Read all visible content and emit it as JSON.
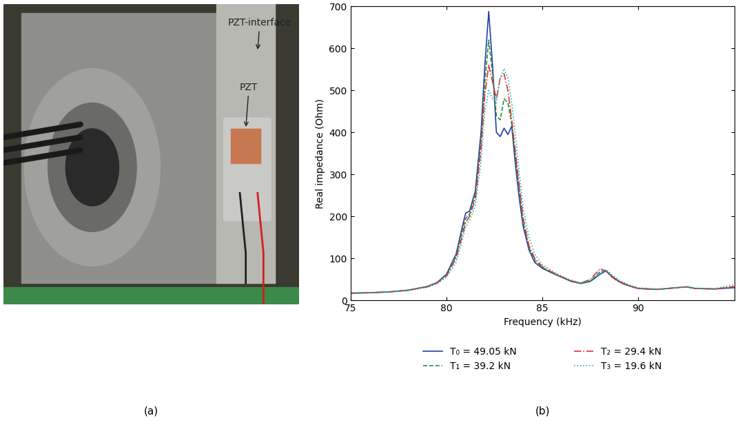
{
  "chart_data": {
    "type": "line",
    "x_label": "Frequency (kHz)",
    "y_label": "Real impedance (Ohm)",
    "caption": "(b)",
    "x": [
      75,
      76,
      77,
      78,
      79,
      79.5,
      80,
      80.5,
      80.8,
      81,
      81.2,
      81.5,
      81.8,
      82,
      82.2,
      82.4,
      82.6,
      82.8,
      83,
      83.2,
      83.4,
      83.6,
      83.8,
      84,
      84.3,
      84.6,
      85,
      85.5,
      86,
      86.5,
      87,
      87.5,
      88,
      88.3,
      88.6,
      89,
      89.5,
      90,
      91,
      92,
      92.5,
      93,
      94,
      95
    ],
    "series": [
      {
        "name": "T₀ = 49.05 kN",
        "color": "#1f3fa8",
        "line_style": "solid",
        "values": [
          17,
          18,
          20,
          24,
          33,
          42,
          62,
          110,
          170,
          208,
          212,
          260,
          400,
          560,
          688,
          560,
          400,
          390,
          410,
          395,
          415,
          320,
          240,
          175,
          120,
          90,
          76,
          65,
          55,
          45,
          40,
          45,
          62,
          70,
          58,
          45,
          35,
          28,
          26,
          30,
          32,
          28,
          27,
          30
        ]
      },
      {
        "name": "T₁ = 39.2 kN",
        "color": "#2e8b3e",
        "line_style": "dashed",
        "values": [
          17,
          18,
          20,
          24,
          33,
          42,
          60,
          105,
          160,
          195,
          205,
          250,
          380,
          520,
          620,
          540,
          440,
          430,
          480,
          470,
          420,
          340,
          260,
          185,
          125,
          95,
          78,
          66,
          55,
          46,
          40,
          46,
          68,
          72,
          58,
          44,
          35,
          28,
          26,
          30,
          32,
          28,
          27,
          32
        ]
      },
      {
        "name": "T₂ = 29.4 kN",
        "color": "#e03030",
        "line_style": "dashdot",
        "values": [
          17,
          18,
          20,
          24,
          32,
          41,
          58,
          100,
          150,
          185,
          200,
          240,
          360,
          490,
          560,
          520,
          480,
          530,
          540,
          500,
          430,
          350,
          270,
          195,
          130,
          100,
          80,
          67,
          56,
          46,
          41,
          50,
          75,
          70,
          56,
          43,
          34,
          28,
          26,
          30,
          32,
          28,
          27,
          33
        ]
      },
      {
        "name": "T₃ = 19.6 kN",
        "color": "#20b0c0",
        "line_style": "dotted",
        "values": [
          17,
          18,
          20,
          23,
          31,
          39,
          55,
          90,
          140,
          175,
          190,
          225,
          330,
          450,
          500,
          480,
          470,
          530,
          552,
          530,
          470,
          390,
          300,
          220,
          150,
          110,
          85,
          70,
          58,
          48,
          42,
          48,
          65,
          73,
          62,
          48,
          37,
          30,
          27,
          30,
          33,
          29,
          28,
          38
        ]
      }
    ],
    "xlim": [
      75,
      95
    ],
    "xticks": [
      75,
      80,
      85,
      90
    ],
    "ylim": [
      0,
      700
    ],
    "yticks": [
      0,
      100,
      200,
      300,
      400,
      500,
      600,
      700
    ],
    "grid": false,
    "legend": "upper center"
  },
  "photo": {
    "labels": [
      "PZT-interface",
      "PZT"
    ],
    "caption": "(a)"
  }
}
